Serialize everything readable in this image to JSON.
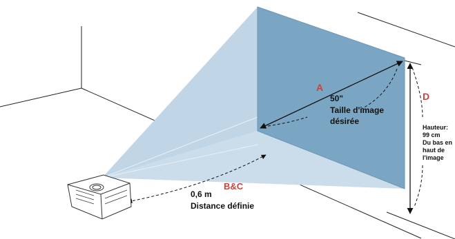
{
  "labels": {
    "a": "A",
    "d": "D",
    "bc": "B&C",
    "diagonal_value": "50\"",
    "image_size_line1": "Taille d'image",
    "image_size_line2": "désirée",
    "distance_value": "0,6 m",
    "distance_label": "Distance définie",
    "height_line1": "Hauteur:",
    "height_line2": "99 cm",
    "height_line3": "Du bas en",
    "height_line4": "haut de",
    "height_line5": "l'image"
  },
  "colors": {
    "screen": "#7aa6c4",
    "beam": "#bcd4e6",
    "beam_light": "#dce8f2",
    "accent_label": "#c8443a",
    "line": "#111111"
  },
  "icons": {
    "projector": "projector-icon"
  }
}
